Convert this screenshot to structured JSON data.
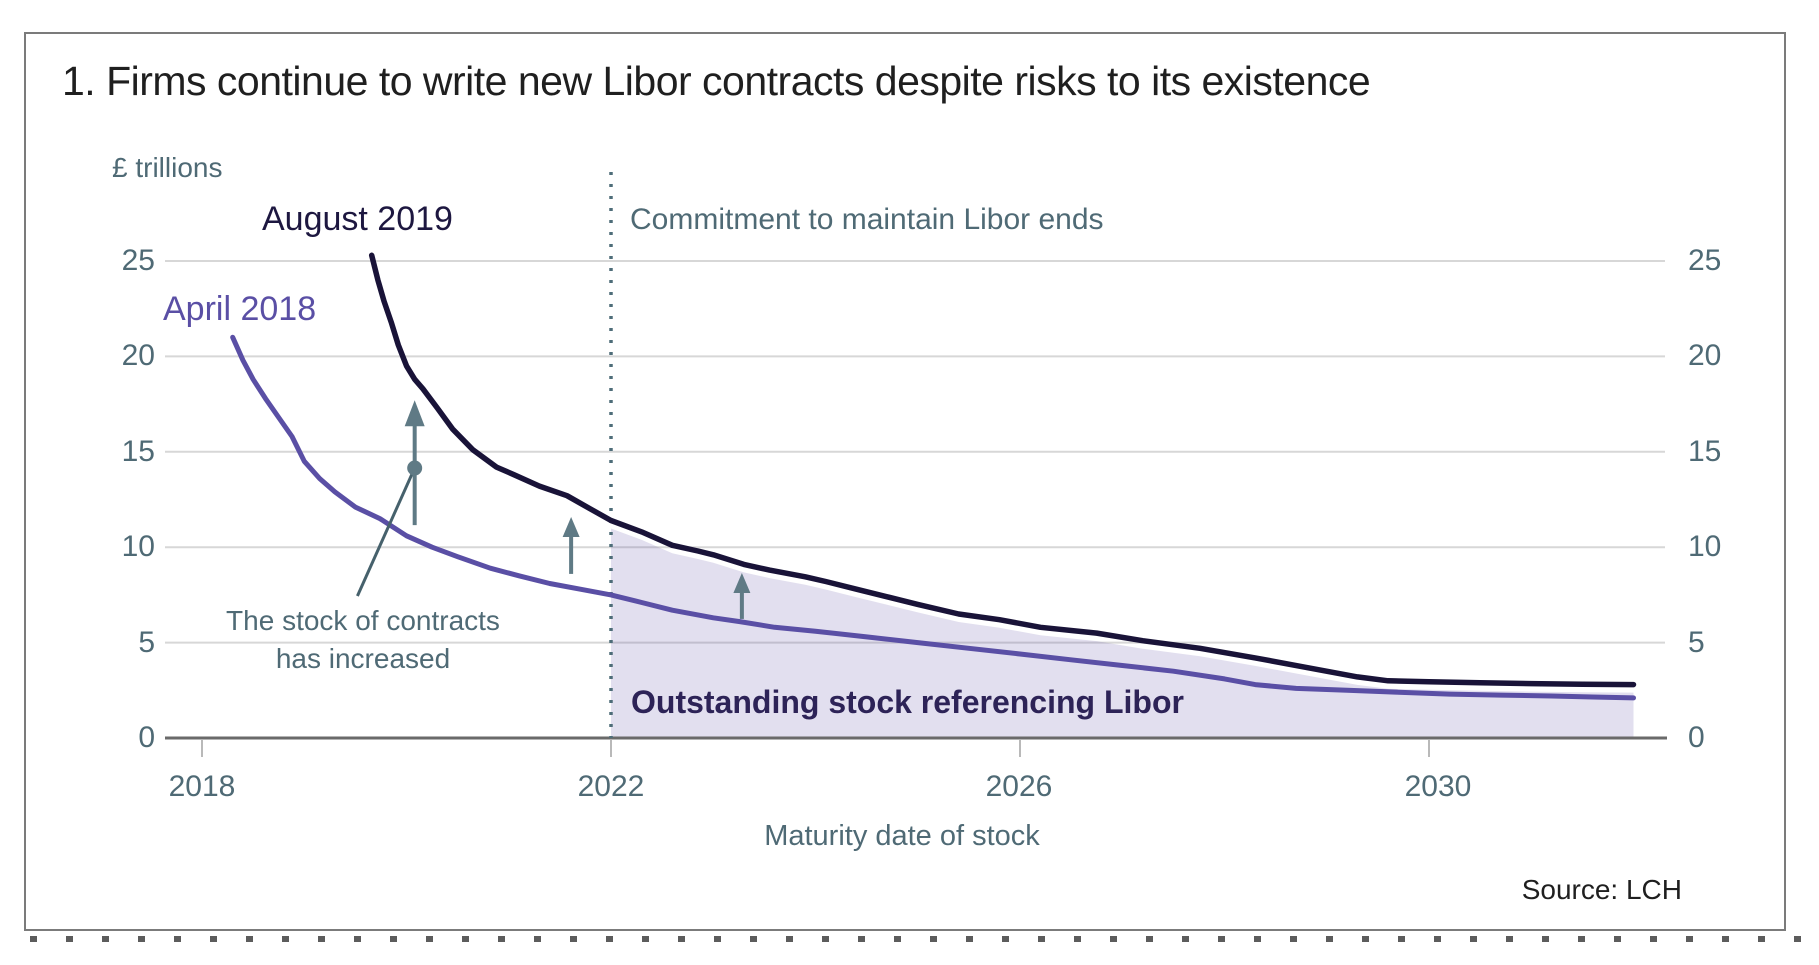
{
  "chart": {
    "title": "1. Firms continue to write new Libor contracts despite risks to its existence",
    "unit_label": "£ trillions",
    "x_axis_title": "Maturity date of stock",
    "event_label": "Commitment to maintain Libor ends",
    "annotation_text": "The stock of contracts\nhas increased",
    "area_label": "Outstanding stock referencing Libor",
    "source": "Source: LCH",
    "label_august": "August 2019",
    "label_april": "April 2018"
  },
  "chart_data": {
    "type": "line",
    "title": "1. Firms continue to write new Libor contracts despite risks to its existence",
    "xlabel": "Maturity date of stock",
    "ylabel": "£ trillions",
    "xlim": [
      2017.6,
      2032.3
    ],
    "ylim": [
      0,
      26
    ],
    "grid": true,
    "legend_position": "inline-labels",
    "y_ticks": [
      25,
      20,
      15,
      10,
      5,
      0
    ],
    "x_ticks": [
      2018,
      2022,
      2026,
      2030
    ],
    "event_line_x": 2022,
    "colors": {
      "august_2019": "#191338",
      "april_2018": "#5a4fa5",
      "shaded_area": "rgba(96,78,165,0.18)",
      "slate": "#4f6a75",
      "arrow": "#5f7a85",
      "gridline": "#d7d7d7",
      "axis": "#6a6a6a"
    },
    "series": [
      {
        "name": "August 2019",
        "color": "#191338",
        "points": [
          [
            2019.66,
            25.3
          ],
          [
            2019.72,
            24.0
          ],
          [
            2019.78,
            22.9
          ],
          [
            2019.85,
            21.8
          ],
          [
            2019.92,
            20.6
          ],
          [
            2020.0,
            19.5
          ],
          [
            2020.08,
            18.8
          ],
          [
            2020.16,
            18.3
          ],
          [
            2020.3,
            17.3
          ],
          [
            2020.45,
            16.2
          ],
          [
            2020.65,
            15.1
          ],
          [
            2020.88,
            14.2
          ],
          [
            2021.05,
            13.8
          ],
          [
            2021.3,
            13.2
          ],
          [
            2021.57,
            12.7
          ],
          [
            2021.8,
            12.0
          ],
          [
            2022.0,
            11.4
          ],
          [
            2022.3,
            10.8
          ],
          [
            2022.6,
            10.1
          ],
          [
            2022.85,
            9.8
          ],
          [
            2023.0,
            9.6
          ],
          [
            2023.3,
            9.1
          ],
          [
            2023.55,
            8.8
          ],
          [
            2023.9,
            8.45
          ],
          [
            2024.1,
            8.2
          ],
          [
            2024.4,
            7.8
          ],
          [
            2024.7,
            7.4
          ],
          [
            2025.0,
            7.0
          ],
          [
            2025.4,
            6.5
          ],
          [
            2025.8,
            6.2
          ],
          [
            2026.2,
            5.8
          ],
          [
            2026.75,
            5.5
          ],
          [
            2027.2,
            5.1
          ],
          [
            2027.76,
            4.7
          ],
          [
            2028.3,
            4.2
          ],
          [
            2028.8,
            3.7
          ],
          [
            2029.3,
            3.2
          ],
          [
            2029.6,
            3.0
          ],
          [
            2030.0,
            2.95
          ],
          [
            2030.5,
            2.9
          ],
          [
            2031.0,
            2.85
          ],
          [
            2031.5,
            2.82
          ],
          [
            2032.0,
            2.8
          ]
        ]
      },
      {
        "name": "April 2018",
        "color": "#5a4fa5",
        "points": [
          [
            2018.3,
            21.0
          ],
          [
            2018.4,
            19.8
          ],
          [
            2018.5,
            18.8
          ],
          [
            2018.62,
            17.8
          ],
          [
            2018.75,
            16.8
          ],
          [
            2018.88,
            15.8
          ],
          [
            2019.0,
            14.5
          ],
          [
            2019.15,
            13.6
          ],
          [
            2019.3,
            12.9
          ],
          [
            2019.5,
            12.1
          ],
          [
            2019.74,
            11.5
          ],
          [
            2020.0,
            10.6
          ],
          [
            2020.25,
            10.0
          ],
          [
            2020.5,
            9.5
          ],
          [
            2020.82,
            8.9
          ],
          [
            2021.1,
            8.5
          ],
          [
            2021.4,
            8.1
          ],
          [
            2021.7,
            7.8
          ],
          [
            2022.0,
            7.5
          ],
          [
            2022.3,
            7.1
          ],
          [
            2022.6,
            6.7
          ],
          [
            2023.0,
            6.3
          ],
          [
            2023.26,
            6.1
          ],
          [
            2023.6,
            5.8
          ],
          [
            2024.0,
            5.6
          ],
          [
            2024.5,
            5.3
          ],
          [
            2025.0,
            5.0
          ],
          [
            2025.5,
            4.7
          ],
          [
            2026.0,
            4.4
          ],
          [
            2026.5,
            4.1
          ],
          [
            2027.0,
            3.8
          ],
          [
            2027.5,
            3.5
          ],
          [
            2028.0,
            3.1
          ],
          [
            2028.3,
            2.8
          ],
          [
            2028.7,
            2.6
          ],
          [
            2029.2,
            2.5
          ],
          [
            2029.7,
            2.4
          ],
          [
            2030.2,
            2.3
          ],
          [
            2030.7,
            2.25
          ],
          [
            2031.2,
            2.2
          ],
          [
            2031.6,
            2.15
          ],
          [
            2032.0,
            2.1
          ]
        ]
      }
    ],
    "shaded_region": {
      "label": "Outstanding stock referencing Libor",
      "from_x": 2022,
      "to_x": 2032,
      "bounded_above_by": "August 2019",
      "bounded_below_by": 0
    },
    "annotations": {
      "text": "The stock of contracts has increased",
      "leader_from": [
        2019.52,
        7.44
      ],
      "dot_at": [
        2020.08,
        14.15
      ],
      "arrows": [
        {
          "x": 2020.08,
          "y_from": 11.16,
          "y_to": 17.7,
          "size": "large"
        },
        {
          "x": 2021.61,
          "y_from": 8.6,
          "y_to": 11.58,
          "size": "small"
        },
        {
          "x": 2023.28,
          "y_from": 6.24,
          "y_to": 8.65,
          "size": "small"
        }
      ]
    }
  }
}
